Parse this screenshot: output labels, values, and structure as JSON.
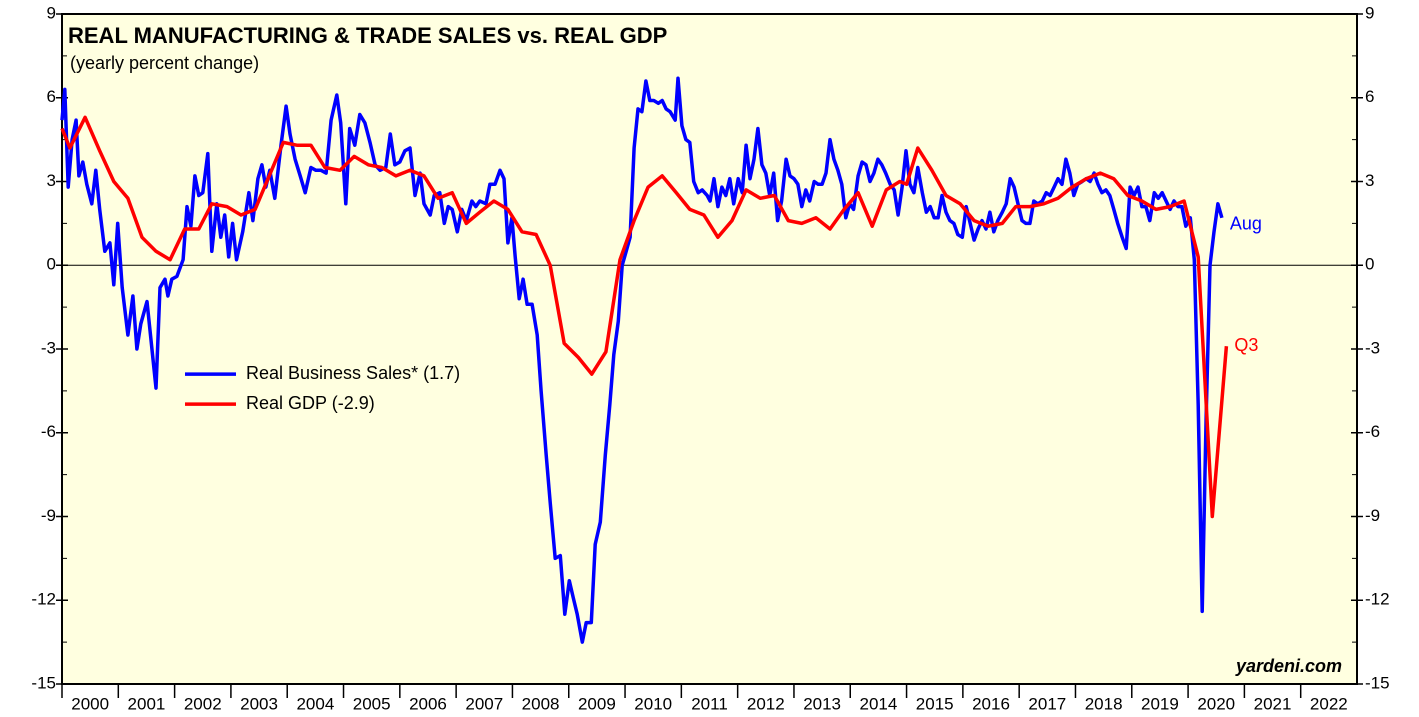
{
  "chart_data": {
    "type": "line",
    "title": "REAL MANUFACTURING & TRADE SALES vs. REAL GDP",
    "subtitle": "(yearly percent change)",
    "annotation": "yardeni.com",
    "xlim": [
      2000,
      2023
    ],
    "xticks": [
      2000,
      2001,
      2002,
      2003,
      2004,
      2005,
      2006,
      2007,
      2008,
      2009,
      2010,
      2011,
      2012,
      2013,
      2014,
      2015,
      2016,
      2017,
      2018,
      2019,
      2020,
      2021,
      2022
    ],
    "ylim": [
      -15,
      9
    ],
    "yticks": [
      -15,
      -12,
      -9,
      -6,
      -3,
      0,
      3,
      6,
      9
    ],
    "legend": "middle-left",
    "series": [
      {
        "name": "Real Business Sales* (1.7)",
        "color": "#0000ff",
        "end_label": "Aug",
        "x": [
          2000.0,
          2000.05,
          2000.11,
          2000.18,
          2000.25,
          2000.3,
          2000.37,
          2000.44,
          2000.53,
          2000.6,
          2000.67,
          2000.76,
          2000.85,
          2000.92,
          2000.99,
          2001.07,
          2001.17,
          2001.26,
          2001.33,
          2001.4,
          2001.51,
          2001.67,
          2001.74,
          2001.83,
          2001.88,
          2001.95,
          2002.04,
          2002.15,
          2002.22,
          2002.29,
          2002.36,
          2002.43,
          2002.5,
          2002.59,
          2002.66,
          2002.75,
          2002.82,
          2002.89,
          2002.96,
          2003.03,
          2003.1,
          2003.21,
          2003.32,
          2003.39,
          2003.48,
          2003.55,
          2003.62,
          2003.69,
          2003.78,
          2003.89,
          2003.98,
          2004.05,
          2004.14,
          2004.23,
          2004.32,
          2004.42,
          2004.51,
          2004.6,
          2004.69,
          2004.78,
          2004.88,
          2004.95,
          2005.04,
          2005.11,
          2005.2,
          2005.29,
          2005.38,
          2005.47,
          2005.56,
          2005.65,
          2005.75,
          2005.83,
          2005.91,
          2006.0,
          2006.09,
          2006.18,
          2006.27,
          2006.36,
          2006.43,
          2006.54,
          2006.61,
          2006.71,
          2006.79,
          2006.86,
          2006.93,
          2007.02,
          2007.1,
          2007.18,
          2007.28,
          2007.35,
          2007.42,
          2007.53,
          2007.6,
          2007.69,
          2007.78,
          2007.85,
          2007.92,
          2007.99,
          2008.05,
          2008.12,
          2008.19,
          2008.26,
          2008.35,
          2008.44,
          2008.51,
          2008.6,
          2008.67,
          2008.76,
          2008.85,
          2008.93,
          2009.01,
          2009.08,
          2009.15,
          2009.24,
          2009.31,
          2009.4,
          2009.47,
          2009.56,
          2009.65,
          2009.73,
          2009.8,
          2009.88,
          2009.95,
          2010.02,
          2010.09,
          2010.16,
          2010.23,
          2010.3,
          2010.37,
          2010.44,
          2010.51,
          2010.59,
          2010.66,
          2010.73,
          2010.8,
          2010.89,
          2010.94,
          2011.01,
          2011.08,
          2011.15,
          2011.22,
          2011.3,
          2011.37,
          2011.46,
          2011.51,
          2011.58,
          2011.65,
          2011.72,
          2011.79,
          2011.86,
          2011.93,
          2012.01,
          2012.08,
          2012.15,
          2012.22,
          2012.29,
          2012.36,
          2012.43,
          2012.5,
          2012.57,
          2012.64,
          2012.71,
          2012.78,
          2012.86,
          2012.93,
          2013.0,
          2013.07,
          2013.14,
          2013.21,
          2013.28,
          2013.36,
          2013.43,
          2013.5,
          2013.57,
          2013.64,
          2013.71,
          2013.78,
          2013.85,
          2013.92,
          2013.99,
          2014.06,
          2014.14,
          2014.21,
          2014.28,
          2014.35,
          2014.42,
          2014.49,
          2014.56,
          2014.63,
          2014.71,
          2014.78,
          2014.85,
          2014.92,
          2014.99,
          2015.06,
          2015.13,
          2015.2,
          2015.28,
          2015.35,
          2015.42,
          2015.49,
          2015.56,
          2015.63,
          2015.7,
          2015.77,
          2015.84,
          2015.91,
          2015.99,
          2016.06,
          2016.13,
          2016.2,
          2016.27,
          2016.34,
          2016.41,
          2016.48,
          2016.55,
          2016.62,
          2016.7,
          2016.77,
          2016.84,
          2016.91,
          2016.98,
          2017.05,
          2017.12,
          2017.19,
          2017.26,
          2017.33,
          2017.41,
          2017.48,
          2017.55,
          2017.62,
          2017.69,
          2017.76,
          2017.83,
          2017.9,
          2017.97,
          2018.04,
          2018.12,
          2018.19,
          2018.26,
          2018.33,
          2018.4,
          2018.47,
          2018.54,
          2018.61,
          2018.68,
          2018.75,
          2018.83,
          2018.9,
          2018.97,
          2019.04,
          2019.11,
          2019.18,
          2019.25,
          2019.32,
          2019.4,
          2019.47,
          2019.54,
          2019.61,
          2019.68,
          2019.75,
          2019.82,
          2019.89,
          2019.96,
          2020.04,
          2020.11,
          2020.18,
          2020.25,
          2020.32,
          2020.39,
          2020.46,
          2020.53,
          2020.6
        ],
        "values": [
          5.2,
          6.3,
          2.8,
          4.5,
          5.2,
          3.2,
          3.7,
          2.9,
          2.2,
          3.4,
          2.0,
          0.5,
          0.8,
          -0.7,
          1.5,
          -0.8,
          -2.5,
          -1.1,
          -3.0,
          -2.1,
          -1.3,
          -4.4,
          -0.8,
          -0.5,
          -1.1,
          -0.5,
          -0.4,
          0.2,
          2.1,
          1.4,
          3.2,
          2.5,
          2.6,
          4.0,
          0.5,
          2.2,
          1.0,
          1.8,
          0.3,
          1.5,
          0.2,
          1.2,
          2.6,
          1.6,
          3.1,
          3.6,
          2.8,
          3.4,
          2.4,
          4.3,
          5.7,
          4.7,
          3.8,
          3.2,
          2.6,
          3.5,
          3.4,
          3.4,
          3.3,
          5.2,
          6.1,
          5.1,
          2.2,
          4.9,
          4.3,
          5.4,
          5.1,
          4.4,
          3.6,
          3.4,
          3.5,
          4.7,
          3.6,
          3.7,
          4.1,
          4.2,
          2.5,
          3.3,
          2.2,
          1.8,
          2.5,
          2.6,
          1.5,
          2.1,
          2.0,
          1.2,
          2.0,
          1.6,
          2.3,
          2.1,
          2.3,
          2.2,
          2.9,
          2.9,
          3.4,
          3.1,
          0.8,
          1.7,
          0.3,
          -1.2,
          -0.5,
          -1.4,
          -1.4,
          -2.5,
          -4.5,
          -6.8,
          -8.5,
          -10.5,
          -10.4,
          -12.5,
          -11.3,
          -11.9,
          -12.5,
          -13.5,
          -12.8,
          -12.8,
          -10.0,
          -9.2,
          -6.8,
          -5.0,
          -3.2,
          -2.0,
          0.0,
          0.5,
          1.0,
          4.2,
          5.6,
          5.5,
          6.6,
          5.9,
          5.9,
          5.8,
          5.9,
          5.6,
          5.5,
          5.2,
          6.7,
          5.0,
          4.5,
          4.4,
          3.0,
          2.6,
          2.7,
          2.5,
          2.3,
          3.1,
          2.1,
          2.8,
          2.5,
          3.1,
          2.2,
          3.1,
          2.6,
          4.3,
          3.1,
          3.8,
          4.9,
          3.6,
          3.3,
          2.5,
          3.3,
          1.6,
          2.3,
          3.8,
          3.2,
          3.1,
          2.9,
          2.1,
          2.7,
          2.3,
          3.0,
          2.9,
          2.9,
          3.3,
          4.5,
          3.8,
          3.4,
          2.9,
          1.7,
          2.2,
          2.0,
          3.2,
          3.7,
          3.6,
          3.0,
          3.3,
          3.8,
          3.6,
          3.3,
          2.9,
          2.7,
          1.8,
          2.8,
          4.1,
          2.9,
          2.6,
          3.5,
          2.6,
          1.9,
          2.1,
          1.7,
          1.7,
          2.5,
          1.9,
          1.6,
          1.5,
          1.1,
          1.0,
          2.1,
          1.5,
          0.9,
          1.3,
          1.6,
          1.3,
          1.9,
          1.2,
          1.6,
          1.9,
          2.2,
          3.1,
          2.8,
          2.2,
          1.6,
          1.5,
          1.5,
          2.3,
          2.2,
          2.3,
          2.6,
          2.5,
          2.8,
          3.1,
          2.9,
          3.8,
          3.3,
          2.5,
          2.9,
          3.0,
          3.1,
          3.0,
          3.3,
          2.9,
          2.6,
          2.7,
          2.5,
          2.0,
          1.5,
          1.0,
          0.6,
          2.8,
          2.5,
          2.8,
          2.1,
          2.1,
          1.6,
          2.6,
          2.4,
          2.6,
          2.3,
          2.0,
          2.3,
          2.1,
          2.1,
          1.4,
          1.7,
          0.2,
          -5.0,
          -12.4,
          -5.5,
          0.0,
          1.2,
          2.2,
          1.7
        ]
      },
      {
        "name": "Real GDP (-2.9)",
        "color": "#ff0000",
        "end_label": "Q3",
        "x": [
          2000.0,
          2000.14,
          2000.41,
          2000.67,
          2000.92,
          2001.17,
          2001.42,
          2001.67,
          2001.92,
          2002.18,
          2002.43,
          2002.66,
          2002.93,
          2003.18,
          2003.43,
          2003.68,
          2003.93,
          2004.17,
          2004.42,
          2004.67,
          2004.94,
          2005.19,
          2005.44,
          2005.68,
          2005.93,
          2006.18,
          2006.43,
          2006.68,
          2006.93,
          2007.18,
          2007.42,
          2007.67,
          2007.92,
          2008.17,
          2008.42,
          2008.67,
          2008.92,
          2009.17,
          2009.41,
          2009.66,
          2009.91,
          2010.16,
          2010.41,
          2010.66,
          2010.91,
          2011.15,
          2011.4,
          2011.65,
          2011.9,
          2012.15,
          2012.4,
          2012.65,
          2012.9,
          2013.14,
          2013.39,
          2013.64,
          2013.89,
          2014.14,
          2014.39,
          2014.64,
          2014.88,
          2015.0,
          2015.2,
          2015.45,
          2015.7,
          2015.95,
          2016.2,
          2016.45,
          2016.7,
          2016.94,
          2017.19,
          2017.44,
          2017.69,
          2017.94,
          2018.19,
          2018.44,
          2018.68,
          2018.93,
          2019.18,
          2019.43,
          2019.68,
          2019.93,
          2020.18,
          2020.43,
          2020.68
        ],
        "values": [
          4.9,
          4.2,
          5.3,
          4.1,
          3.0,
          2.4,
          1.0,
          0.5,
          0.2,
          1.3,
          1.3,
          2.2,
          2.1,
          1.8,
          2.0,
          3.2,
          4.4,
          4.3,
          4.3,
          3.5,
          3.4,
          3.9,
          3.6,
          3.5,
          3.2,
          3.4,
          3.2,
          2.4,
          2.6,
          1.5,
          1.9,
          2.3,
          2.0,
          1.2,
          1.1,
          0.0,
          -2.8,
          -3.3,
          -3.9,
          -3.1,
          0.2,
          1.6,
          2.8,
          3.2,
          2.6,
          2.0,
          1.8,
          1.0,
          1.6,
          2.7,
          2.4,
          2.5,
          1.6,
          1.5,
          1.7,
          1.3,
          2.0,
          2.6,
          1.4,
          2.7,
          3.0,
          2.9,
          4.2,
          3.4,
          2.5,
          2.2,
          1.6,
          1.4,
          1.5,
          2.1,
          2.1,
          2.2,
          2.4,
          2.8,
          3.1,
          3.3,
          3.1,
          2.5,
          2.3,
          2.0,
          2.1,
          2.3,
          0.3,
          -9.0,
          -2.9
        ]
      }
    ]
  }
}
